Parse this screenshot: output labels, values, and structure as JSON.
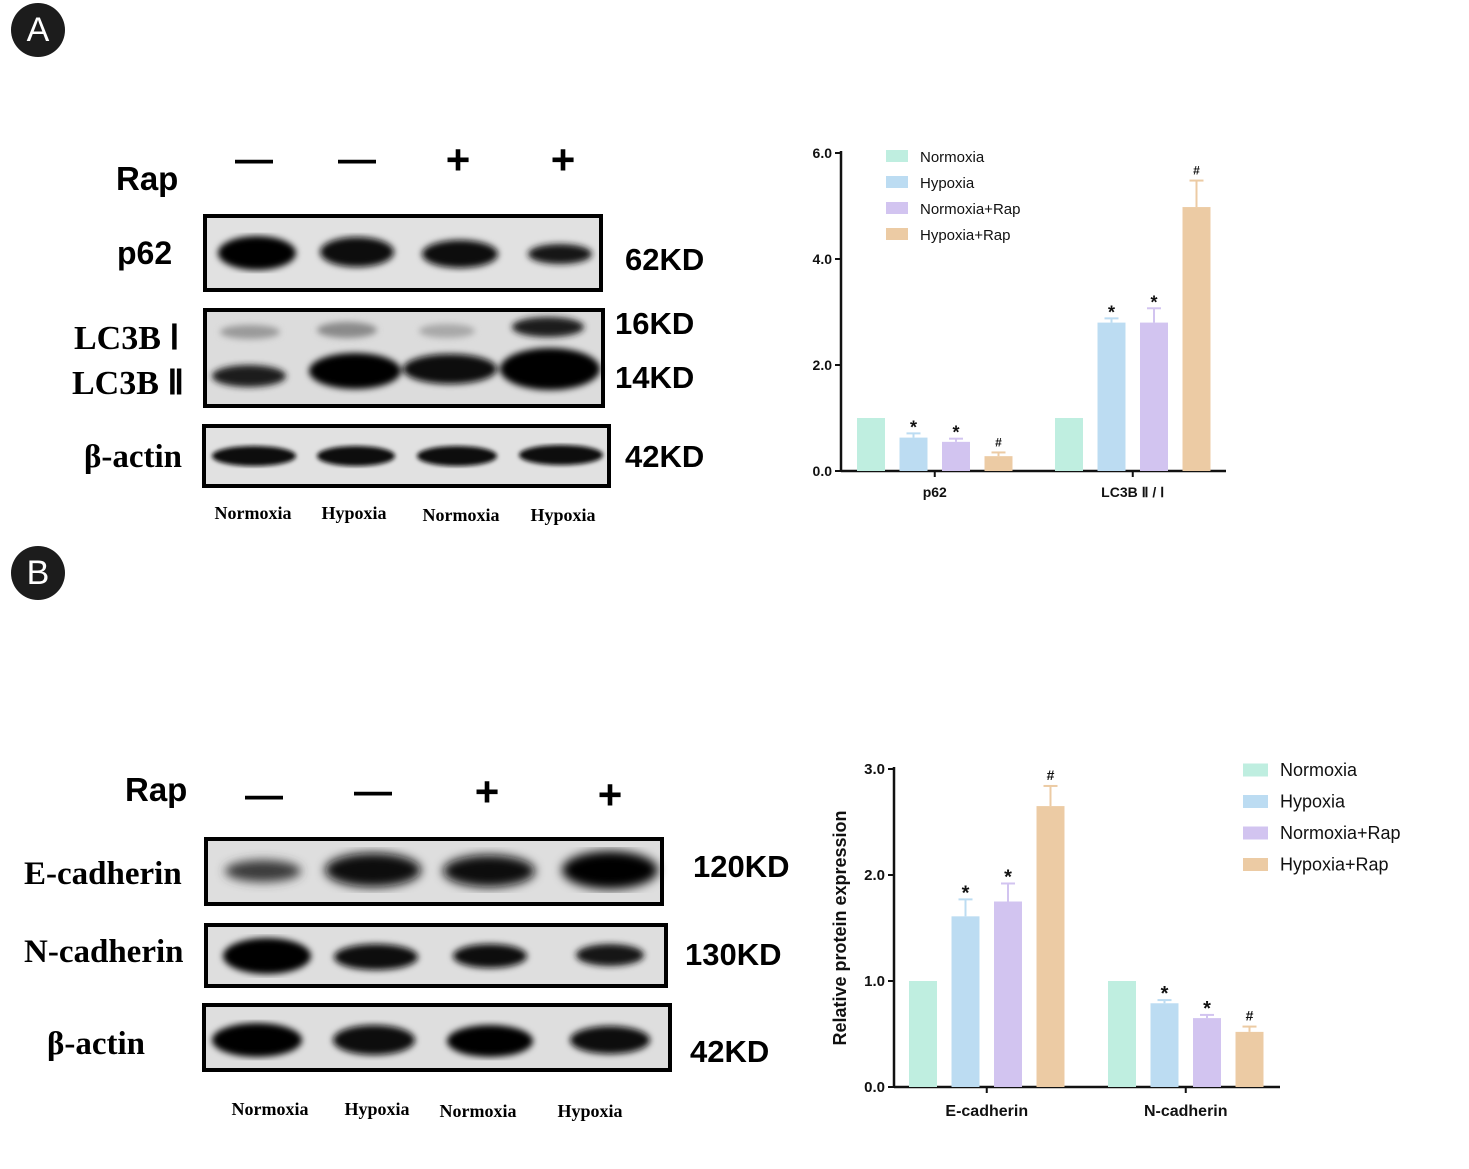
{
  "panels": {
    "a": "A",
    "b": "B"
  },
  "blot_a": {
    "treatment_label": "Rap",
    "treatment_signs": [
      "—",
      "—",
      "+",
      "+"
    ],
    "rows": [
      {
        "label": "p62",
        "kd": "62KD"
      },
      {
        "label_top": "LC3B Ⅰ",
        "label_bottom": "LC3B Ⅱ",
        "kd_top": "16KD",
        "kd_bottom": "14KD"
      },
      {
        "label": "β-actin",
        "kd": "42KD"
      }
    ],
    "lanes": [
      "Normoxia",
      "Hypoxia",
      "Normoxia",
      "Hypoxia"
    ]
  },
  "blot_b": {
    "treatment_label": "Rap",
    "treatment_signs": [
      "—",
      "—",
      "+",
      "+"
    ],
    "rows": [
      {
        "label": "E-cadherin",
        "kd": "120KD"
      },
      {
        "label": "N-cadherin",
        "kd": "130KD"
      },
      {
        "label": "β-actin",
        "kd": "42KD"
      }
    ],
    "lanes": [
      "Normoxia",
      "Hypoxia",
      "Normoxia",
      "Hypoxia"
    ]
  },
  "colors": {
    "Normoxia": "#bfeee0",
    "Hypoxia": "#bcdcf2",
    "Normoxia+Rap": "#d2c4f0",
    "Hypoxia+Rap": "#eccba4",
    "axis": "#111111"
  },
  "chart_data": [
    {
      "type": "bar",
      "title": "",
      "xlabel": "",
      "ylabel": "",
      "ylim": [
        0,
        6
      ],
      "yticks": [
        "0.0",
        "2.0",
        "4.0",
        "6.0"
      ],
      "categories": [
        "p62",
        "LC3B Ⅱ / Ⅰ"
      ],
      "legend_position": "top-left",
      "series": [
        {
          "name": "Normoxia",
          "values": [
            1.0,
            1.0
          ],
          "errors": [
            0,
            0
          ],
          "marks": [
            "",
            ""
          ]
        },
        {
          "name": "Hypoxia",
          "values": [
            0.63,
            2.8
          ],
          "errors": [
            0.08,
            0.08
          ],
          "marks": [
            "*",
            "*"
          ]
        },
        {
          "name": "Normoxia+Rap",
          "values": [
            0.55,
            2.8
          ],
          "errors": [
            0.06,
            0.27
          ],
          "marks": [
            "*",
            "*"
          ]
        },
        {
          "name": "Hypoxia+Rap",
          "values": [
            0.28,
            4.98
          ],
          "errors": [
            0.07,
            0.5
          ],
          "marks": [
            "#",
            "#"
          ]
        }
      ]
    },
    {
      "type": "bar",
      "title": "",
      "xlabel": "",
      "ylabel": "Relative protein expression",
      "ylim": [
        0,
        3
      ],
      "yticks": [
        "0.0",
        "1.0",
        "2.0",
        "3.0"
      ],
      "categories": [
        "E-cadherin",
        "N-cadherin"
      ],
      "legend_position": "top-right",
      "series": [
        {
          "name": "Normoxia",
          "values": [
            1.0,
            1.0
          ],
          "errors": [
            0,
            0
          ],
          "marks": [
            "",
            ""
          ]
        },
        {
          "name": "Hypoxia",
          "values": [
            1.61,
            0.79
          ],
          "errors": [
            0.16,
            0.03
          ],
          "marks": [
            "*",
            "*"
          ]
        },
        {
          "name": "Normoxia+Rap",
          "values": [
            1.75,
            0.65
          ],
          "errors": [
            0.17,
            0.03
          ],
          "marks": [
            "*",
            "*"
          ]
        },
        {
          "name": "Hypoxia+Rap",
          "values": [
            2.65,
            0.52
          ],
          "errors": [
            0.19,
            0.05
          ],
          "marks": [
            "#",
            "#"
          ]
        }
      ]
    }
  ]
}
